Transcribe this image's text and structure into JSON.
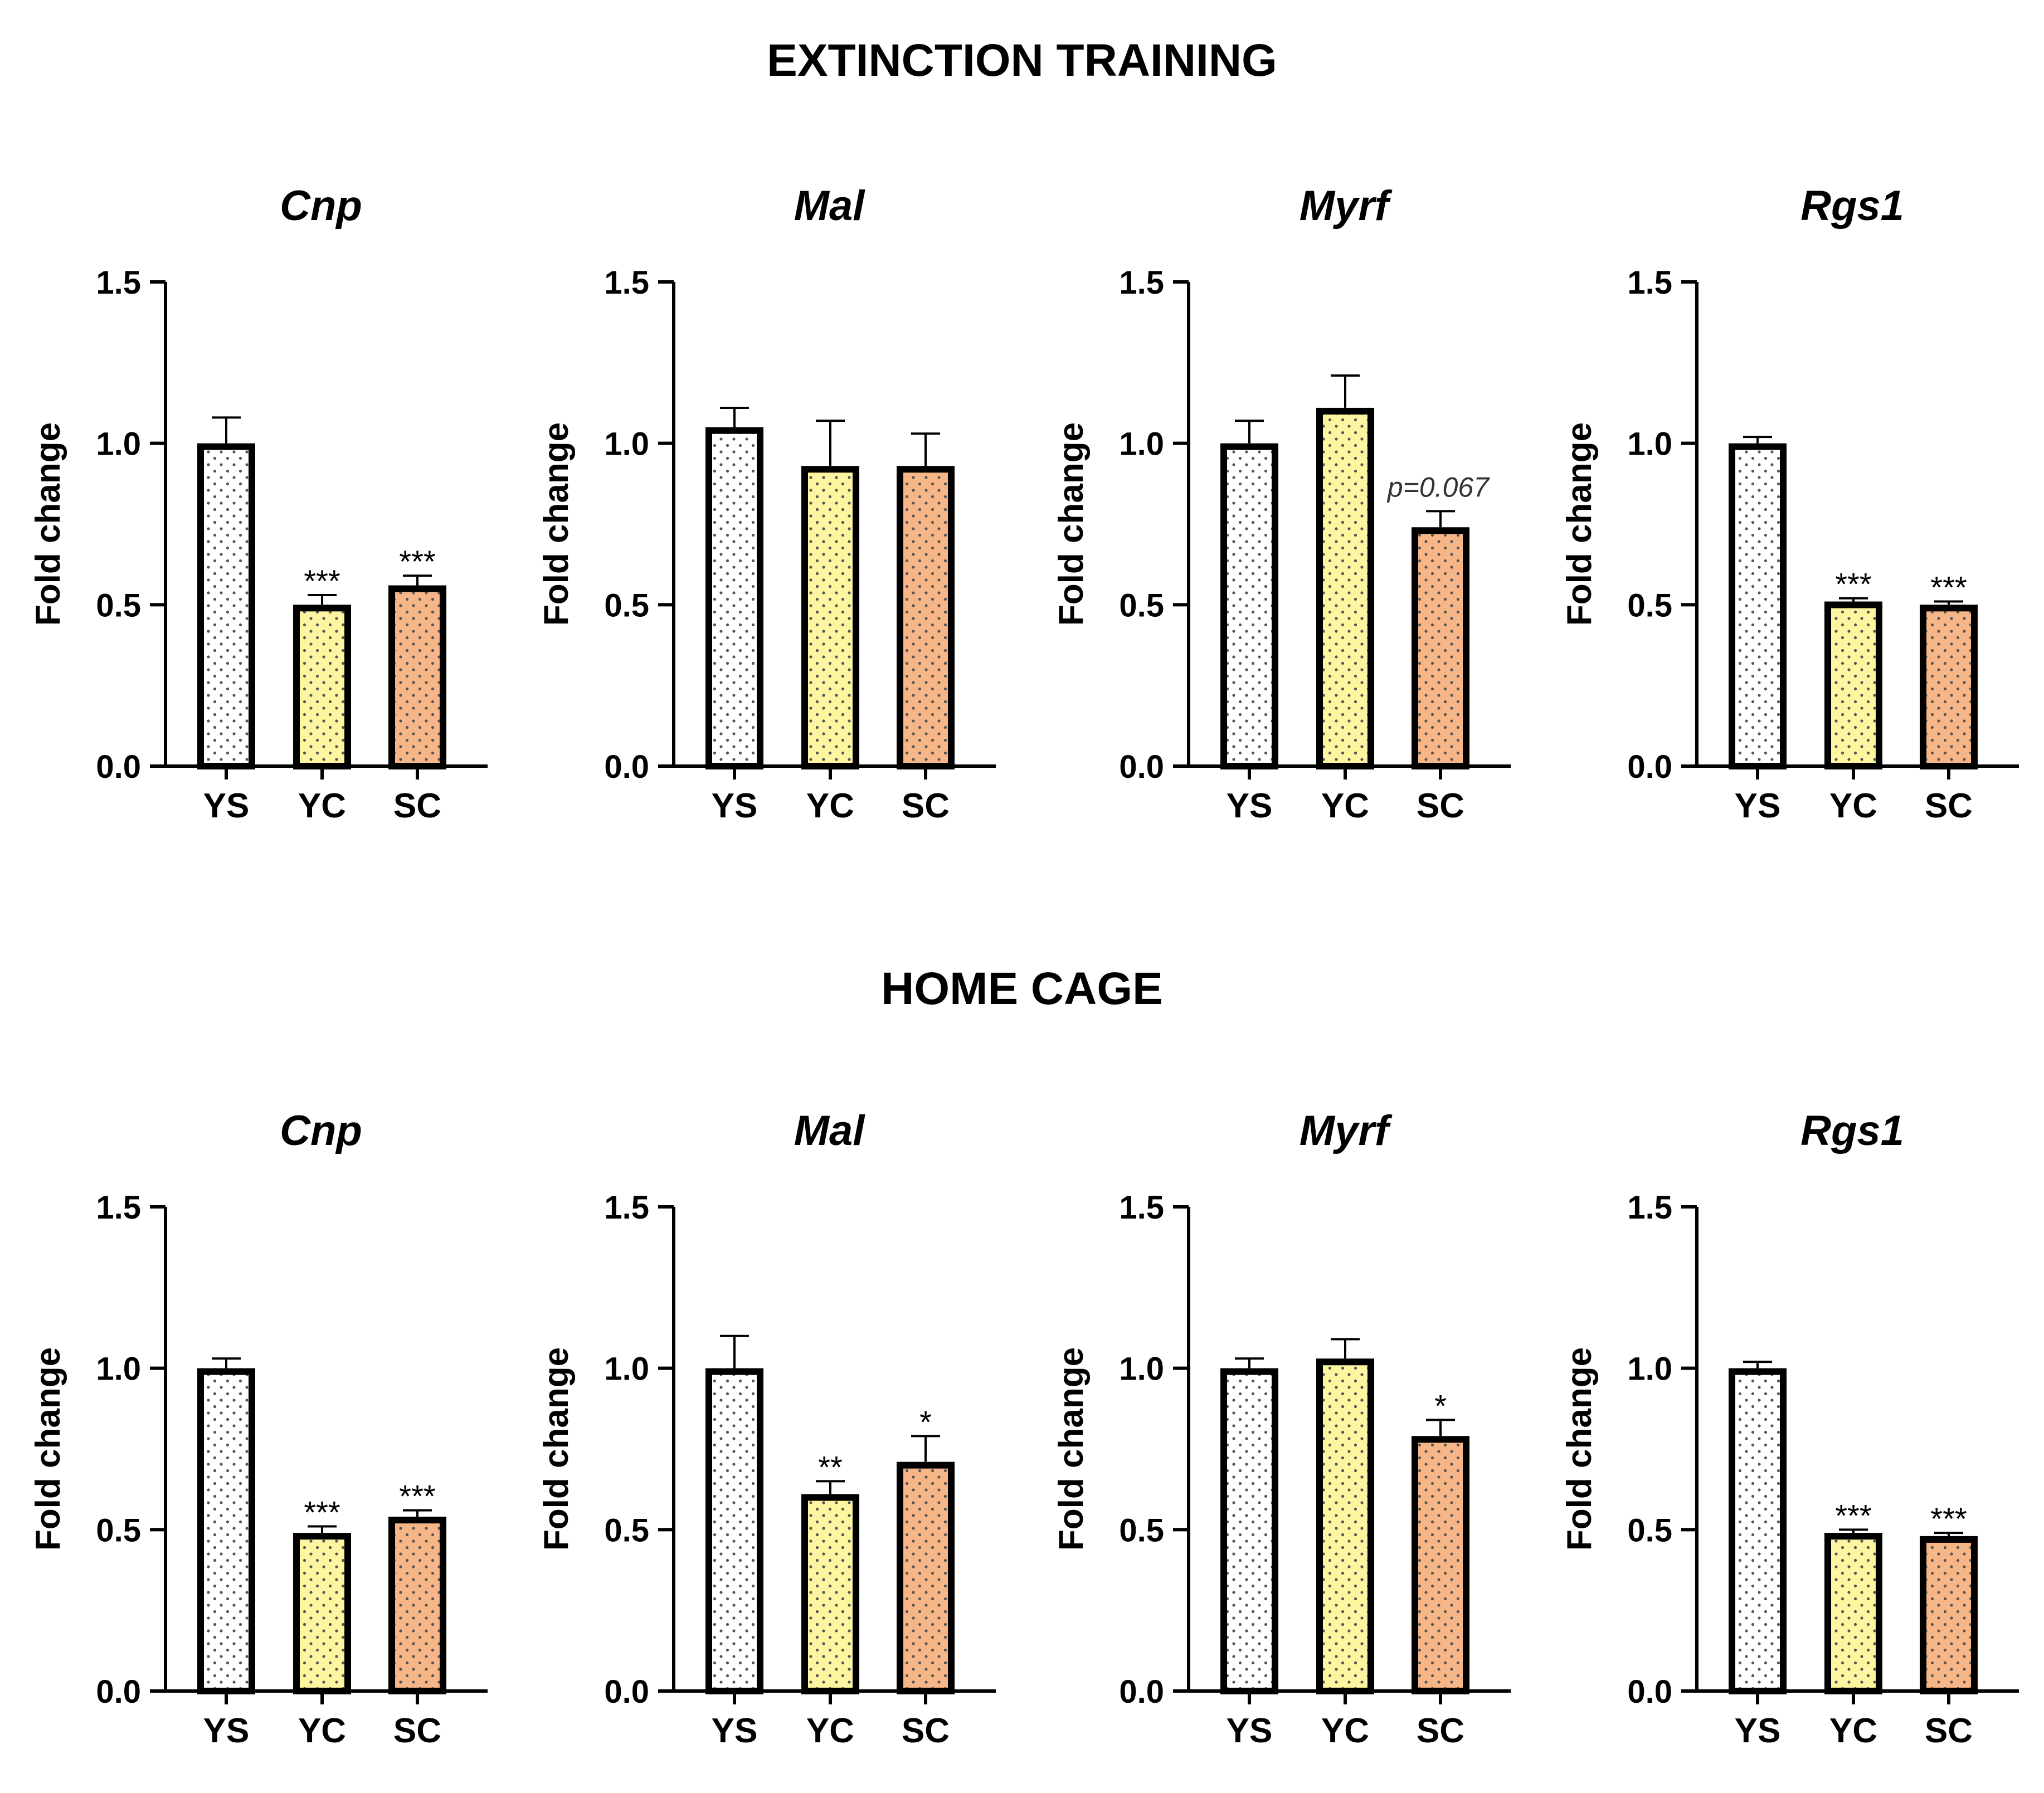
{
  "colors": {
    "ys": "#ffffff",
    "yc": "#fdf5a0",
    "sc": "#f6b687",
    "stroke": "#000000",
    "dots": "#555555"
  },
  "sections": [
    {
      "title": "EXTINCTION TRAINING"
    },
    {
      "title": "HOME CAGE"
    }
  ],
  "chart_data": [
    {
      "type": "bar",
      "section": "EXTINCTION TRAINING",
      "title": "Cnp",
      "ylabel": "Fold change",
      "ylim": [
        0,
        1.5
      ],
      "yticks": [
        "0.0",
        "0.5",
        "1.0",
        "1.5"
      ],
      "categories": [
        "YS",
        "YC",
        "SC"
      ],
      "values": [
        1.0,
        0.5,
        0.56
      ],
      "errors": [
        0.08,
        0.03,
        0.03
      ],
      "annotations": [
        "",
        "***",
        "***"
      ]
    },
    {
      "type": "bar",
      "section": "EXTINCTION TRAINING",
      "title": "Mal",
      "ylabel": "Fold change",
      "ylim": [
        0,
        1.5
      ],
      "yticks": [
        "0.0",
        "0.5",
        "1.0",
        "1.5"
      ],
      "categories": [
        "YS",
        "YC",
        "SC"
      ],
      "values": [
        1.05,
        0.93,
        0.93
      ],
      "errors": [
        0.06,
        0.14,
        0.1
      ],
      "annotations": [
        "",
        "",
        ""
      ]
    },
    {
      "type": "bar",
      "section": "EXTINCTION TRAINING",
      "title": "Myrf",
      "ylabel": "Fold change",
      "ylim": [
        0,
        1.5
      ],
      "yticks": [
        "0.0",
        "0.5",
        "1.0",
        "1.5"
      ],
      "categories": [
        "YS",
        "YC",
        "SC"
      ],
      "values": [
        1.0,
        1.11,
        0.74
      ],
      "errors": [
        0.07,
        0.1,
        0.05
      ],
      "annotations": [
        "",
        "",
        "p=0.067"
      ]
    },
    {
      "type": "bar",
      "section": "EXTINCTION TRAINING",
      "title": "Rgs1",
      "ylabel": "Fold change",
      "ylim": [
        0,
        1.5
      ],
      "yticks": [
        "0.0",
        "0.5",
        "1.0",
        "1.5"
      ],
      "categories": [
        "YS",
        "YC",
        "SC"
      ],
      "values": [
        1.0,
        0.51,
        0.5
      ],
      "errors": [
        0.02,
        0.01,
        0.01
      ],
      "annotations": [
        "",
        "***",
        "***"
      ]
    },
    {
      "type": "bar",
      "section": "HOME CAGE",
      "title": "Cnp",
      "ylabel": "Fold change",
      "ylim": [
        0,
        1.5
      ],
      "yticks": [
        "0.0",
        "0.5",
        "1.0",
        "1.5"
      ],
      "categories": [
        "YS",
        "YC",
        "SC"
      ],
      "values": [
        1.0,
        0.49,
        0.54
      ],
      "errors": [
        0.03,
        0.02,
        0.02
      ],
      "annotations": [
        "",
        "***",
        "***"
      ]
    },
    {
      "type": "bar",
      "section": "HOME CAGE",
      "title": "Mal",
      "ylabel": "Fold change",
      "ylim": [
        0,
        1.5
      ],
      "yticks": [
        "0.0",
        "0.5",
        "1.0",
        "1.5"
      ],
      "categories": [
        "YS",
        "YC",
        "SC"
      ],
      "values": [
        1.0,
        0.61,
        0.71
      ],
      "errors": [
        0.1,
        0.04,
        0.08
      ],
      "annotations": [
        "",
        "**",
        "*"
      ]
    },
    {
      "type": "bar",
      "section": "HOME CAGE",
      "title": "Myrf",
      "ylabel": "Fold change",
      "ylim": [
        0,
        1.5
      ],
      "yticks": [
        "0.0",
        "0.5",
        "1.0",
        "1.5"
      ],
      "categories": [
        "YS",
        "YC",
        "SC"
      ],
      "values": [
        1.0,
        1.03,
        0.79
      ],
      "errors": [
        0.03,
        0.06,
        0.05
      ],
      "annotations": [
        "",
        "",
        "*"
      ]
    },
    {
      "type": "bar",
      "section": "HOME CAGE",
      "title": "Rgs1",
      "ylabel": "Fold change",
      "ylim": [
        0,
        1.5
      ],
      "yticks": [
        "0.0",
        "0.5",
        "1.0",
        "1.5"
      ],
      "categories": [
        "YS",
        "YC",
        "SC"
      ],
      "values": [
        1.0,
        0.49,
        0.48
      ],
      "errors": [
        0.02,
        0.01,
        0.01
      ],
      "annotations": [
        "",
        "***",
        "***"
      ]
    }
  ]
}
